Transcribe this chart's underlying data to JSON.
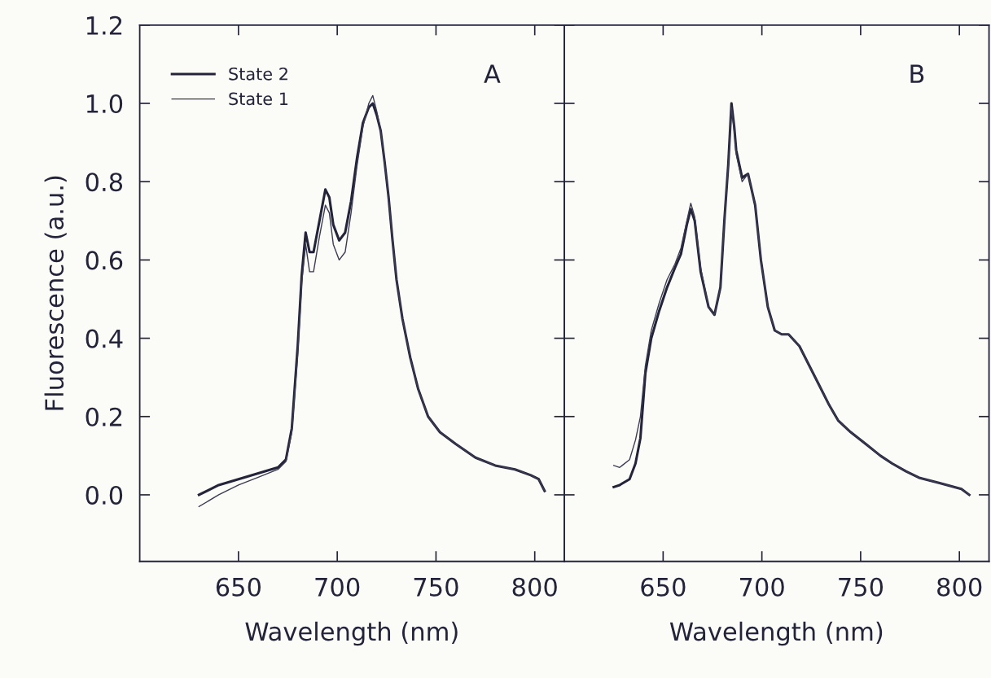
{
  "chart_data": [
    {
      "type": "line",
      "xlabel": "Wavelength (nm)",
      "ylabel": "Fluorescence (a.u.)",
      "annotations": [
        "A"
      ],
      "legend": "top left",
      "xlim": [
        600,
        815
      ],
      "xticks": [
        650,
        700,
        750,
        800
      ],
      "ylim": [
        -0.17,
        1.2
      ],
      "yticks": [
        {
          "value": 0,
          "label": "0.0"
        },
        {
          "value": 0.2,
          "label": "0.2"
        },
        {
          "value": 0.4,
          "label": "0.4"
        },
        {
          "value": 0.6,
          "label": "0.6"
        },
        {
          "value": 0.8,
          "label": "0.8"
        },
        {
          "value": 1.0,
          "label": "1.0"
        },
        {
          "value": 1.2,
          "label": "1.2"
        }
      ],
      "series": [
        {
          "name": "State 2",
          "color": "#23233a",
          "x": [
            630,
            640,
            650,
            660,
            670,
            674,
            677,
            680,
            682,
            684,
            686,
            688,
            691,
            694,
            696,
            698,
            701,
            704,
            707,
            710,
            713,
            716,
            718,
            720,
            722,
            724,
            726,
            728,
            730,
            733,
            737,
            741,
            746,
            752,
            760,
            770,
            780,
            790,
            798,
            802,
            805
          ],
          "values": [
            0.0,
            0.025,
            0.04,
            0.055,
            0.07,
            0.09,
            0.17,
            0.38,
            0.56,
            0.67,
            0.62,
            0.62,
            0.7,
            0.78,
            0.76,
            0.69,
            0.65,
            0.67,
            0.75,
            0.86,
            0.95,
            0.99,
            1.0,
            0.97,
            0.93,
            0.85,
            0.76,
            0.65,
            0.55,
            0.45,
            0.35,
            0.27,
            0.2,
            0.16,
            0.13,
            0.095,
            0.075,
            0.065,
            0.05,
            0.04,
            0.01
          ]
        },
        {
          "name": "State 1",
          "color": "#3a3a52",
          "x": [
            630,
            640,
            650,
            660,
            670,
            674,
            677,
            680,
            682,
            684,
            686,
            688,
            691,
            694,
            696,
            698,
            701,
            704,
            707,
            710,
            713,
            716,
            718,
            720,
            722,
            724,
            726,
            728,
            730,
            733,
            737,
            741,
            746,
            752,
            760,
            770,
            780,
            790,
            798,
            802,
            805
          ],
          "values": [
            -0.03,
            0.0,
            0.025,
            0.045,
            0.065,
            0.085,
            0.16,
            0.36,
            0.54,
            0.64,
            0.57,
            0.57,
            0.66,
            0.74,
            0.72,
            0.64,
            0.6,
            0.62,
            0.72,
            0.84,
            0.94,
            1.0,
            1.02,
            0.98,
            0.93,
            0.85,
            0.76,
            0.65,
            0.55,
            0.45,
            0.35,
            0.27,
            0.2,
            0.16,
            0.13,
            0.095,
            0.075,
            0.065,
            0.05,
            0.04,
            0.01
          ]
        }
      ]
    },
    {
      "type": "line",
      "xlabel": "Wavelength (nm)",
      "annotations": [
        "B"
      ],
      "tick_labels": "x",
      "xlim": [
        600,
        815
      ],
      "xticks": [
        650,
        700,
        750,
        800
      ],
      "ylim": [
        -0.17,
        1.2
      ],
      "yticks": [
        {
          "value": 0,
          "label": null
        },
        {
          "value": 0.2,
          "label": null
        },
        {
          "value": 0.4,
          "label": null
        },
        {
          "value": 0.6,
          "label": null
        },
        {
          "value": 0.8,
          "label": null
        },
        {
          "value": 1.0,
          "label": null
        },
        {
          "value": 1.2,
          "label": null
        }
      ],
      "series": [
        {
          "color": "#23233a",
          "x": [
            625,
            628,
            633,
            636,
            638.5,
            641,
            644,
            648,
            652,
            656,
            659,
            662,
            664,
            666,
            669,
            673,
            676,
            679,
            681,
            683,
            684.6,
            686,
            687,
            690,
            693,
            696.6,
            699.5,
            703,
            706.5,
            710,
            713.5,
            719,
            724,
            729,
            734,
            738.6,
            745,
            752.6,
            760,
            766,
            773,
            780,
            790,
            801,
            805
          ],
          "values": [
            0.02,
            0.025,
            0.04,
            0.08,
            0.145,
            0.31,
            0.4,
            0.47,
            0.53,
            0.58,
            0.615,
            0.69,
            0.73,
            0.7,
            0.57,
            0.48,
            0.46,
            0.53,
            0.7,
            0.845,
            1.0,
            0.94,
            0.88,
            0.81,
            0.82,
            0.74,
            0.6,
            0.48,
            0.42,
            0.41,
            0.41,
            0.38,
            0.33,
            0.28,
            0.23,
            0.19,
            0.16,
            0.13,
            0.1,
            0.08,
            0.06,
            0.043,
            0.03,
            0.015,
            0.0
          ]
        },
        {
          "color": "#3a3a52",
          "x": [
            625,
            628,
            633,
            636,
            638.5,
            641,
            644,
            648,
            652,
            656,
            659,
            662,
            664,
            666,
            669,
            673,
            676,
            679,
            681,
            683,
            684.6,
            686,
            687,
            690,
            693,
            696.6,
            699.5,
            703,
            706.5,
            710,
            713.5,
            719,
            724,
            729,
            734,
            738.6,
            745,
            752.6,
            760,
            766,
            773,
            780,
            790,
            801,
            805
          ],
          "values": [
            0.075,
            0.07,
            0.09,
            0.14,
            0.2,
            0.33,
            0.42,
            0.49,
            0.55,
            0.59,
            0.63,
            0.7,
            0.745,
            0.71,
            0.58,
            0.48,
            0.46,
            0.53,
            0.7,
            0.84,
            0.99,
            0.93,
            0.87,
            0.8,
            0.82,
            0.74,
            0.6,
            0.48,
            0.42,
            0.41,
            0.41,
            0.38,
            0.33,
            0.28,
            0.23,
            0.19,
            0.16,
            0.13,
            0.1,
            0.08,
            0.06,
            0.043,
            0.03,
            0.015,
            0.0
          ]
        }
      ]
    }
  ]
}
